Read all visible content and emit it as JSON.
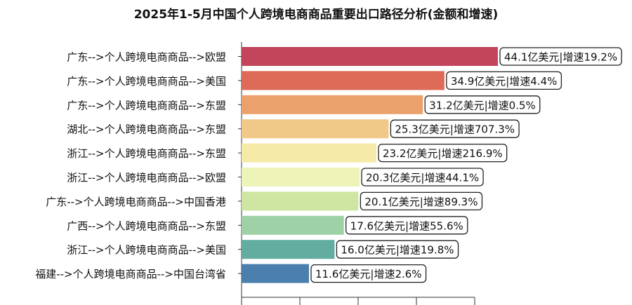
{
  "chart_data": {
    "type": "bar",
    "orientation": "horizontal",
    "title": "2025年1-5月中国个人跨境电商商品重要出口路径分析(金额和增速)",
    "categories": [
      "广东-->个人跨境电商商品-->欧盟",
      "广东-->个人跨境电商商品-->美国",
      "广东-->个人跨境电商商品-->东盟",
      "湖北-->个人跨境电商商品-->东盟",
      "浙江-->个人跨境电商商品-->东盟",
      "浙江-->个人跨境电商商品-->欧盟",
      "广东-->个人跨境电商商品-->中国香港",
      "广西-->个人跨境电商商品-->东盟",
      "浙江-->个人跨境电商商品-->美国",
      "福建-->个人跨境电商商品-->中国台湾省"
    ],
    "values": [
      44.1,
      34.9,
      31.2,
      25.3,
      23.2,
      20.3,
      20.1,
      17.6,
      16.0,
      11.6
    ],
    "growth": [
      19.2,
      4.4,
      0.5,
      707.3,
      216.9,
      44.1,
      89.3,
      55.6,
      19.8,
      2.6
    ],
    "data_labels": [
      "44.1亿美元|增速19.2%",
      "34.9亿美元|增速4.4%",
      "31.2亿美元|增速0.5%",
      "25.3亿美元|增速707.3%",
      "23.2亿美元|增速216.9%",
      "20.3亿美元|增速44.1%",
      "20.1亿美元|增速89.3%",
      "17.6亿美元|增速55.6%",
      "16.0亿美元|增速19.8%",
      "11.6亿美元|增速2.6%"
    ],
    "colors": [
      "#c2455b",
      "#dd6b57",
      "#eba16c",
      "#f0c887",
      "#f6eaa9",
      "#eef4b7",
      "#cfe6a3",
      "#9ed1a6",
      "#62aca0",
      "#4a7fae"
    ],
    "xlim": [
      0,
      44.1
    ],
    "grid": false,
    "legend": "none"
  }
}
